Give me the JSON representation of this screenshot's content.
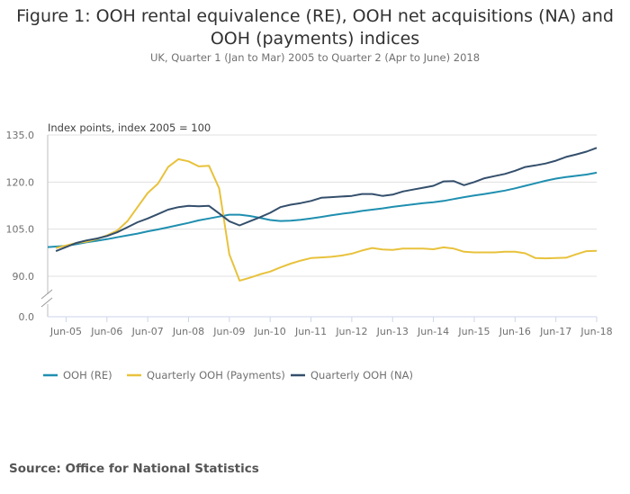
{
  "chart_data": {
    "type": "line",
    "title": "Figure 1: OOH rental equivalence (RE), OOH net acquisitions (NA) and OOH (payments) indices",
    "subtitle": "UK, Quarter 1 (Jan to Mar) 2005 to Quarter 2 (Apr to June) 2018",
    "ylabel": "Index points, index 2005 = 100",
    "xlabel": "",
    "ylim": [
      85,
      135
    ],
    "yticks": [
      "135.0",
      "120.0",
      "105.0",
      "90.0",
      "0.0"
    ],
    "ytick_values": [
      135,
      120,
      105,
      90
    ],
    "axis_break": true,
    "xticks": [
      "Jun-05",
      "Jun-06",
      "Jun-07",
      "Jun-08",
      "Jun-09",
      "Jun-10",
      "Jun-11",
      "Jun-12",
      "Jun-13",
      "Jun-14",
      "Jun-15",
      "Jun-16",
      "Jun-17",
      "Jun-18"
    ],
    "x": [
      "Mar-05",
      "Jun-05",
      "Sep-05",
      "Dec-05",
      "Mar-06",
      "Jun-06",
      "Sep-06",
      "Dec-06",
      "Mar-07",
      "Jun-07",
      "Sep-07",
      "Dec-07",
      "Mar-08",
      "Jun-08",
      "Sep-08",
      "Dec-08",
      "Mar-09",
      "Jun-09",
      "Sep-09",
      "Dec-09",
      "Mar-10",
      "Jun-10",
      "Sep-10",
      "Dec-10",
      "Mar-11",
      "Jun-11",
      "Sep-11",
      "Dec-11",
      "Mar-12",
      "Jun-12",
      "Sep-12",
      "Dec-12",
      "Mar-13",
      "Jun-13",
      "Sep-13",
      "Dec-13",
      "Mar-14",
      "Jun-14",
      "Sep-14",
      "Dec-14",
      "Mar-15",
      "Jun-15",
      "Sep-15",
      "Dec-15",
      "Mar-16",
      "Jun-16",
      "Sep-16",
      "Dec-16",
      "Mar-17",
      "Jun-17",
      "Sep-17",
      "Dec-17",
      "Mar-18",
      "Jun-18"
    ],
    "grid": true,
    "legend_position": "bottom",
    "series": [
      {
        "name": "OOH (RE)",
        "color": "#206095",
        "draw_color": "#1f8fb0",
        "values": [
          99.3,
          99.7,
          100.2,
          100.8,
          101.3,
          101.8,
          102.4,
          103.0,
          103.6,
          104.3,
          104.9,
          105.6,
          106.3,
          107.0,
          107.8,
          108.4,
          109.0,
          109.6,
          109.6,
          109.2,
          108.6,
          107.9,
          107.6,
          107.7,
          108.0,
          108.4,
          108.9,
          109.4,
          109.9,
          110.3,
          110.8,
          111.2,
          111.6,
          112.1,
          112.5,
          112.9,
          113.3,
          113.6,
          114.0,
          114.6,
          115.2,
          115.7,
          116.2,
          116.7,
          117.3,
          118.0,
          118.8,
          119.6,
          120.4,
          121.1,
          121.6,
          122.0,
          122.4,
          123.0
        ]
      },
      {
        "name": "Quarterly OOH (Payments)",
        "color": "#e8c23c",
        "draw_color": "#e8c23c",
        "values": [
          99.0,
          99.8,
          100.6,
          101.0,
          101.8,
          103.0,
          104.5,
          107.5,
          112.0,
          116.5,
          119.5,
          124.8,
          127.3,
          126.6,
          125.0,
          125.2,
          118.0,
          97.0,
          88.6,
          89.5,
          90.6,
          91.5,
          92.8,
          94.0,
          95.0,
          95.8,
          96.0,
          96.2,
          96.6,
          97.2,
          98.2,
          99.0,
          98.5,
          98.4,
          98.8,
          98.8,
          98.8,
          98.6,
          99.2,
          98.8,
          97.8,
          97.6,
          97.6,
          97.6,
          97.8,
          97.8,
          97.3,
          95.8,
          95.7,
          95.8,
          95.9,
          97.0,
          98.0,
          98.1
        ]
      },
      {
        "name": "Quarterly OOH (NA)",
        "color": "#344f6c",
        "draw_color": "#344f6c",
        "values": [
          98.0,
          99.3,
          100.6,
          101.4,
          102.0,
          102.8,
          104.0,
          105.6,
          107.2,
          108.4,
          109.8,
          111.2,
          112.0,
          112.4,
          112.3,
          112.4,
          110.0,
          107.5,
          106.2,
          107.5,
          108.8,
          110.2,
          112.0,
          112.8,
          113.3,
          114.0,
          115.0,
          115.2,
          115.4,
          115.6,
          116.2,
          116.2,
          115.6,
          116.0,
          117.0,
          117.6,
          118.2,
          118.8,
          120.2,
          120.3,
          119.0,
          120.0,
          121.2,
          121.9,
          122.6,
          123.6,
          124.8,
          125.3,
          125.9,
          126.8,
          128.0,
          128.8,
          129.7,
          130.9
        ]
      }
    ]
  },
  "source": "Source: Office for National Statistics"
}
